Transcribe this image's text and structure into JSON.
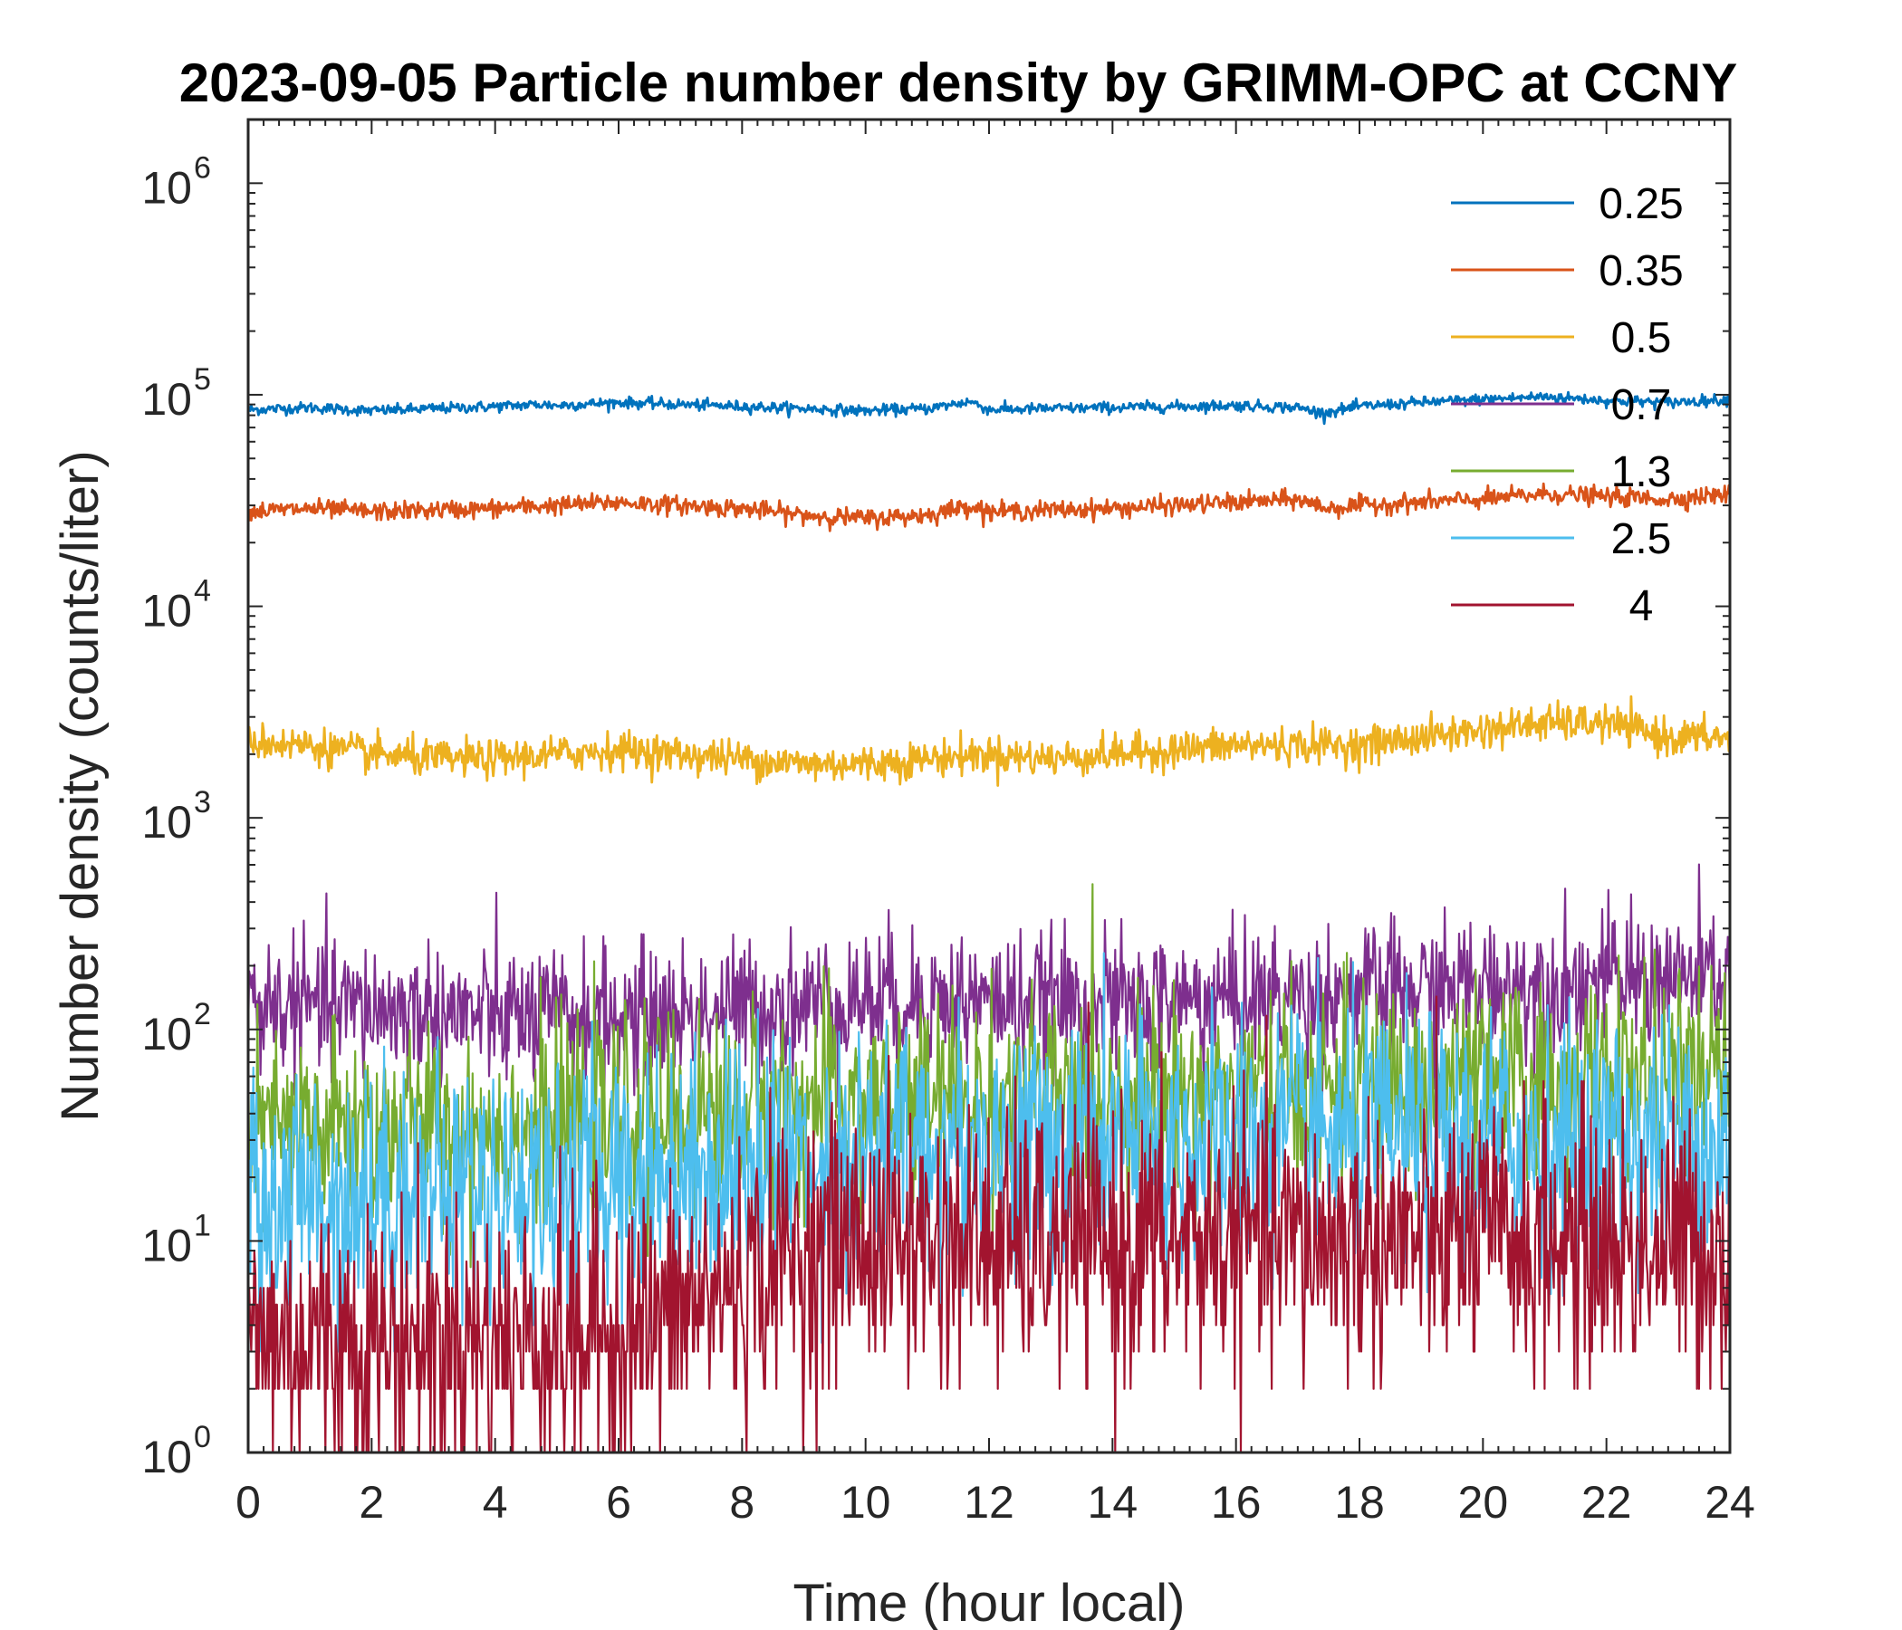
{
  "chart_data": {
    "type": "line",
    "title": "2023-09-05 Particle number density by GRIMM-OPC at CCNY",
    "xlabel": "Time (hour local)",
    "ylabel": "Number density (counts/liter)",
    "xlim": [
      0,
      24
    ],
    "ylim": [
      1,
      2000000
    ],
    "yscale": "log",
    "x_ticks": [
      "0",
      "2",
      "4",
      "6",
      "8",
      "10",
      "12",
      "14",
      "16",
      "18",
      "20",
      "22",
      "24"
    ],
    "y_ticks": [
      {
        "base": "10",
        "exp": "0"
      },
      {
        "base": "10",
        "exp": "1"
      },
      {
        "base": "10",
        "exp": "2"
      },
      {
        "base": "10",
        "exp": "3"
      },
      {
        "base": "10",
        "exp": "4"
      },
      {
        "base": "10",
        "exp": "5"
      },
      {
        "base": "10",
        "exp": "6"
      }
    ],
    "grid": false,
    "legend_position": "top-right",
    "series": [
      {
        "name": "0.25",
        "color": "#0072BD",
        "noise": 0.03,
        "x": [
          0,
          1,
          2,
          3,
          4,
          4.7,
          5,
          6,
          7,
          8,
          9,
          10,
          11,
          11.7,
          12,
          13,
          14,
          15,
          16,
          17,
          17.4,
          18,
          19,
          20,
          21,
          22,
          23,
          24
        ],
        "y": [
          85000,
          87000,
          84000,
          86000,
          88000,
          90000,
          89000,
          92000,
          90000,
          88000,
          86000,
          84000,
          86000,
          93000,
          85000,
          86000,
          87000,
          88000,
          89000,
          87000,
          82000,
          88000,
          92000,
          95000,
          98000,
          94000,
          92000,
          95000
        ]
      },
      {
        "name": "0.35",
        "color": "#D95319",
        "noise": 0.05,
        "x": [
          0,
          1,
          2,
          3,
          4,
          5,
          6,
          7,
          8,
          9,
          10,
          11,
          11.7,
          12,
          13,
          14,
          15,
          16,
          17,
          17.5,
          18,
          19,
          20,
          21,
          22,
          23,
          24
        ],
        "y": [
          28000,
          29000,
          28000,
          28500,
          29000,
          30000,
          31000,
          30000,
          29000,
          27000,
          26000,
          27000,
          30000,
          28000,
          28500,
          29000,
          30000,
          31000,
          32000,
          29000,
          30000,
          31000,
          32000,
          34000,
          33000,
          32000,
          34000
        ]
      },
      {
        "name": "0.5",
        "color": "#EDB120",
        "noise": 0.1,
        "x": [
          0,
          1,
          2,
          3,
          4,
          5,
          6,
          7,
          8,
          9,
          10,
          11,
          12,
          13,
          14,
          15,
          16,
          17,
          18,
          19,
          20,
          21,
          22,
          23,
          24
        ],
        "y": [
          2300,
          2200,
          2000,
          1900,
          1900,
          2000,
          2100,
          2000,
          1900,
          1800,
          1800,
          1900,
          2000,
          1900,
          2000,
          2100,
          2200,
          2200,
          2200,
          2400,
          2600,
          2800,
          2800,
          2400,
          2400
        ]
      },
      {
        "name": "0.7",
        "color": "#7E2F8E",
        "noise": 0.38,
        "x": [
          0,
          2,
          4,
          6,
          8,
          10,
          12,
          14,
          16,
          18,
          20,
          22,
          24
        ],
        "y": [
          130,
          125,
          115,
          112,
          125,
          140,
          135,
          130,
          140,
          145,
          160,
          170,
          175
        ]
      },
      {
        "name": "1.3",
        "color": "#77AC30",
        "noise": 0.55,
        "x": [
          0,
          2,
          4,
          6,
          8,
          10,
          12,
          14,
          16,
          18,
          20,
          22,
          24
        ],
        "y": [
          32,
          35,
          33,
          38,
          42,
          45,
          48,
          47,
          50,
          52,
          55,
          58,
          60
        ]
      },
      {
        "name": "2.5",
        "color": "#4DBEEE",
        "noise": 0.7,
        "x": [
          0,
          2,
          4,
          6,
          8,
          10,
          12,
          14,
          16,
          18,
          20,
          22,
          24
        ],
        "y": [
          15,
          17,
          18,
          20,
          24,
          26,
          28,
          28,
          30,
          30,
          30,
          30,
          30
        ]
      },
      {
        "name": "4",
        "color": "#A2142F",
        "noise": 0.75,
        "x": [
          0,
          2,
          4,
          6,
          7,
          8,
          9,
          10,
          12,
          14,
          16,
          18,
          20,
          22,
          24
        ],
        "y": [
          3.5,
          3.5,
          3.5,
          3.8,
          4.5,
          6.5,
          9,
          10,
          9.5,
          9.5,
          10,
          10,
          10,
          9.5,
          9.5
        ]
      }
    ]
  }
}
